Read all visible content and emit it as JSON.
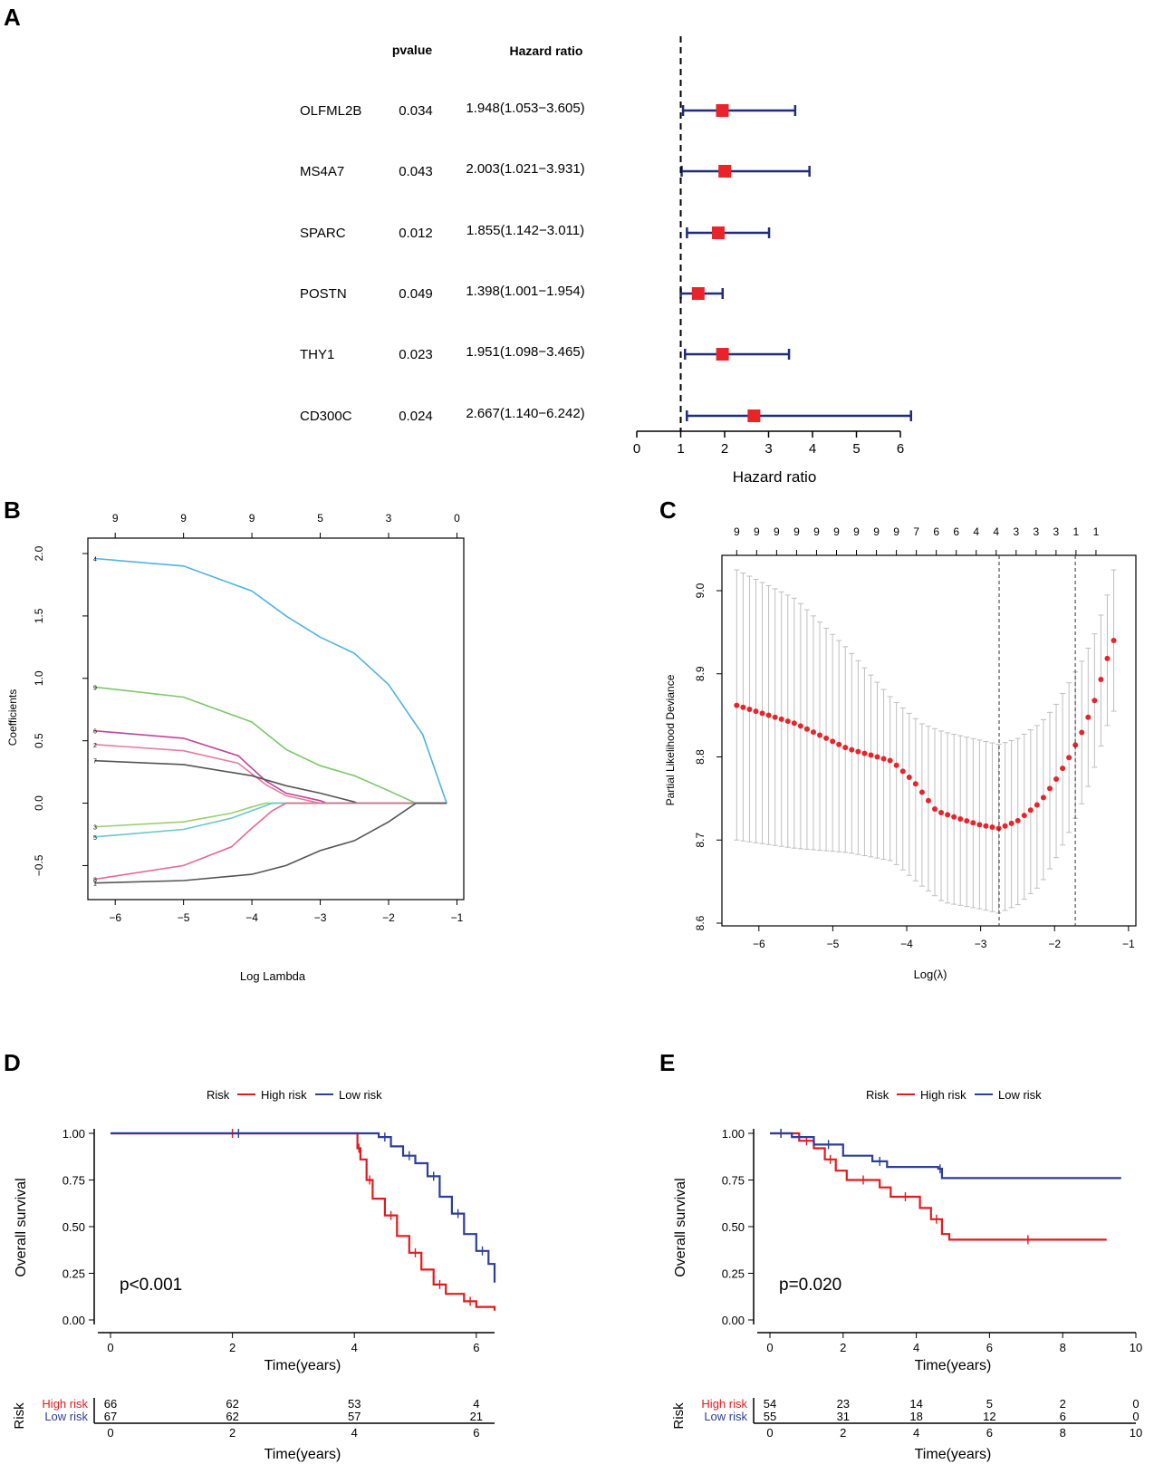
{
  "panels": {
    "A": "A",
    "B": "B",
    "C": "C",
    "D": "D",
    "E": "E"
  },
  "colors": {
    "high": "#e31a1c",
    "low": "#2c3e99",
    "forest_line": "#1f2d7a",
    "forest_box": "#e8232a",
    "cv_point": "#e8232a",
    "cv_bar": "#bfbfbf"
  },
  "chart_data": [
    {
      "id": "A",
      "type": "forest",
      "headers": {
        "pvalue": "pvalue",
        "hazard_ratio": "Hazard ratio"
      },
      "rows": [
        {
          "gene": "OLFML2B",
          "pvalue": "0.034",
          "hr_text": "1.948(1.053−3.605)",
          "hr": 1.948,
          "lo": 1.053,
          "hi": 3.605
        },
        {
          "gene": "MS4A7",
          "pvalue": "0.043",
          "hr_text": "2.003(1.021−3.931)",
          "hr": 2.003,
          "lo": 1.021,
          "hi": 3.931
        },
        {
          "gene": "SPARC",
          "pvalue": "0.012",
          "hr_text": "1.855(1.142−3.011)",
          "hr": 1.855,
          "lo": 1.142,
          "hi": 3.011
        },
        {
          "gene": "POSTN",
          "pvalue": "0.049",
          "hr_text": "1.398(1.001−1.954)",
          "hr": 1.398,
          "lo": 1.001,
          "hi": 1.954
        },
        {
          "gene": "THY1",
          "pvalue": "0.023",
          "hr_text": "1.951(1.098−3.465)",
          "hr": 1.951,
          "lo": 1.098,
          "hi": 3.465
        },
        {
          "gene": "CD300C",
          "pvalue": "0.024",
          "hr_text": "2.667(1.140−6.242)",
          "hr": 2.667,
          "lo": 1.14,
          "hi": 6.242
        }
      ],
      "xlim": [
        0,
        6
      ],
      "xticks": [
        "0",
        "1",
        "2",
        "3",
        "4",
        "5",
        "6"
      ],
      "reference": 1,
      "xlabel": "Hazard ratio"
    },
    {
      "id": "B",
      "type": "line",
      "xlabel": "Log Lambda",
      "ylabel": "Coefficients",
      "xlim": [
        -6.4,
        -0.9
      ],
      "ylim": [
        -0.7,
        2.08
      ],
      "xticks": [
        "−6",
        "−5",
        "−4",
        "−3",
        "−2",
        "−1"
      ],
      "yticks": [
        "−0.5",
        "0.0",
        "0.5",
        "1.0",
        "1.5",
        "2.0"
      ],
      "top_ticks": [
        "9",
        "9",
        "9",
        "5",
        "3",
        "0"
      ],
      "top_tick_x": [
        -6,
        -5,
        -4,
        -3,
        -2,
        -1
      ],
      "series": [
        {
          "name": "4",
          "color": "#4fb3e3",
          "x": [
            -6.3,
            -5,
            -4,
            -3.5,
            -3,
            -2.5,
            -2,
            -1.5,
            -1.15
          ],
          "y": [
            1.96,
            1.9,
            1.7,
            1.5,
            1.33,
            1.2,
            0.95,
            0.55,
            0.0
          ]
        },
        {
          "name": "9",
          "color": "#7cc76a",
          "x": [
            -6.3,
            -5,
            -4,
            -3.5,
            -3,
            -2.5,
            -2,
            -1.6,
            -1.15
          ],
          "y": [
            0.93,
            0.85,
            0.65,
            0.43,
            0.3,
            0.22,
            0.1,
            0.0,
            0.0
          ]
        },
        {
          "name": "6",
          "color": "#c0449a",
          "x": [
            -6.3,
            -5,
            -4.2,
            -3.8,
            -3.5,
            -3,
            -2.9
          ],
          "y": [
            0.58,
            0.52,
            0.38,
            0.18,
            0.08,
            0.02,
            0.0
          ]
        },
        {
          "name": "2",
          "color": "#e87aa0",
          "x": [
            -6.3,
            -5,
            -4.2,
            -3.8,
            -3.5,
            -3
          ],
          "y": [
            0.47,
            0.42,
            0.32,
            0.15,
            0.06,
            0.0
          ]
        },
        {
          "name": "7",
          "color": "#555555",
          "x": [
            -6.3,
            -5,
            -4,
            -3.5,
            -3,
            -2.5,
            -2.45
          ],
          "y": [
            0.34,
            0.31,
            0.22,
            0.14,
            0.08,
            0.01,
            0.0
          ]
        },
        {
          "name": "3",
          "color": "#9ccf6e",
          "x": [
            -6.3,
            -5,
            -4.3,
            -4,
            -3.8
          ],
          "y": [
            -0.19,
            -0.15,
            -0.08,
            -0.03,
            0.0
          ]
        },
        {
          "name": "5",
          "color": "#68c7d0",
          "x": [
            -6.3,
            -5,
            -4.3,
            -3.9,
            -3.7
          ],
          "y": [
            -0.27,
            -0.21,
            -0.12,
            -0.04,
            0.0
          ]
        },
        {
          "name": "8",
          "color": "#e46a8a",
          "x": [
            -6.3,
            -5,
            -4.3,
            -4,
            -3.7,
            -3.5
          ],
          "y": [
            -0.61,
            -0.5,
            -0.35,
            -0.2,
            -0.06,
            0.0
          ]
        },
        {
          "name": "1",
          "color": "#555555",
          "x": [
            -6.3,
            -5,
            -4,
            -3.5,
            -3,
            -2.5,
            -2,
            -1.6
          ],
          "y": [
            -0.64,
            -0.62,
            -0.57,
            -0.5,
            -0.38,
            -0.3,
            -0.15,
            0.0
          ]
        }
      ],
      "line_labels": [
        "4",
        "9",
        "6",
        "2",
        "7",
        "3",
        "5",
        "8",
        "1"
      ]
    },
    {
      "id": "C",
      "type": "scatter",
      "xlabel": "Log(λ)",
      "ylabel": "Partial Likelihood Deviance",
      "xlim": [
        -6.5,
        -0.9
      ],
      "ylim": [
        8.6,
        9.07
      ],
      "xticks": [
        "−6",
        "−5",
        "−4",
        "−3",
        "−2",
        "−1"
      ],
      "yticks": [
        "8.6",
        "8.7",
        "8.8",
        "8.9",
        "9.0"
      ],
      "top_ticks": [
        "9",
        "9",
        "9",
        "9",
        "9",
        "9",
        "9",
        "9",
        "9",
        "7",
        "6",
        "6",
        "4",
        "4",
        "3",
        "3",
        "3",
        "1",
        "1"
      ],
      "top_tick_x": [
        -6.3,
        -6.03,
        -5.76,
        -5.49,
        -5.22,
        -4.95,
        -4.68,
        -4.41,
        -4.14,
        -3.87,
        -3.6,
        -3.33,
        -3.06,
        -2.79,
        -2.52,
        -2.25,
        -1.98,
        -1.71,
        -1.44
      ],
      "vlines": [
        -2.75,
        -1.72
      ],
      "curve": [
        [
          -6.3,
          8.862
        ],
        [
          -5.5,
          8.84
        ],
        [
          -4.8,
          8.81
        ],
        [
          -4.2,
          8.795
        ],
        [
          -3.9,
          8.77
        ],
        [
          -3.6,
          8.735
        ],
        [
          -3.3,
          8.726
        ],
        [
          -3.0,
          8.718
        ],
        [
          -2.75,
          8.714
        ],
        [
          -2.5,
          8.723
        ],
        [
          -2.2,
          8.745
        ],
        [
          -2.0,
          8.77
        ],
        [
          -1.8,
          8.8
        ],
        [
          -1.6,
          8.835
        ],
        [
          -1.45,
          8.87
        ],
        [
          -1.3,
          8.915
        ],
        [
          -1.2,
          8.94
        ]
      ],
      "band_top": [
        [
          -6.3,
          9.025
        ],
        [
          -5.5,
          8.99
        ],
        [
          -4.8,
          8.93
        ],
        [
          -4.2,
          8.87
        ],
        [
          -3.8,
          8.84
        ],
        [
          -3.5,
          8.83
        ],
        [
          -3.0,
          8.82
        ],
        [
          -2.75,
          8.815
        ],
        [
          -2.5,
          8.822
        ],
        [
          -2.2,
          8.84
        ],
        [
          -2.0,
          8.86
        ],
        [
          -1.8,
          8.89
        ],
        [
          -1.6,
          8.92
        ],
        [
          -1.45,
          8.95
        ],
        [
          -1.3,
          8.99
        ],
        [
          -1.2,
          9.025
        ]
      ],
      "band_bottom": [
        [
          -6.3,
          8.7
        ],
        [
          -5.5,
          8.69
        ],
        [
          -4.8,
          8.685
        ],
        [
          -4.2,
          8.675
        ],
        [
          -3.8,
          8.645
        ],
        [
          -3.5,
          8.625
        ],
        [
          -3.0,
          8.617
        ],
        [
          -2.75,
          8.612
        ],
        [
          -2.5,
          8.622
        ],
        [
          -2.2,
          8.645
        ],
        [
          -2.0,
          8.675
        ],
        [
          -1.8,
          8.71
        ],
        [
          -1.6,
          8.75
        ],
        [
          -1.45,
          8.79
        ],
        [
          -1.3,
          8.835
        ],
        [
          -1.2,
          8.855
        ]
      ]
    },
    {
      "id": "D",
      "type": "survival",
      "legend_title": "Risk",
      "legend": [
        "High risk",
        "Low risk"
      ],
      "xlabel": "Time(years)",
      "ylabel": "Overall survival",
      "xlim": [
        0,
        6.3
      ],
      "ylim": [
        0,
        1
      ],
      "xticks": [
        "0",
        "2",
        "4",
        "6"
      ],
      "xtick_vals": [
        0,
        2,
        4,
        6
      ],
      "yticks": [
        "0.00",
        "0.25",
        "0.50",
        "0.75",
        "1.00"
      ],
      "pvalue_text": "p<0.001",
      "high_curve": [
        [
          0,
          1
        ],
        [
          4.0,
          1
        ],
        [
          4.05,
          0.92
        ],
        [
          4.1,
          0.86
        ],
        [
          4.2,
          0.75
        ],
        [
          4.3,
          0.65
        ],
        [
          4.5,
          0.56
        ],
        [
          4.7,
          0.45
        ],
        [
          4.9,
          0.36
        ],
        [
          5.1,
          0.27
        ],
        [
          5.3,
          0.19
        ],
        [
          5.5,
          0.14
        ],
        [
          5.8,
          0.1
        ],
        [
          6.0,
          0.07
        ],
        [
          6.3,
          0.05
        ]
      ],
      "low_curve": [
        [
          0,
          1
        ],
        [
          4.2,
          1
        ],
        [
          4.4,
          0.98
        ],
        [
          4.6,
          0.93
        ],
        [
          4.8,
          0.88
        ],
        [
          5.0,
          0.84
        ],
        [
          5.2,
          0.77
        ],
        [
          5.4,
          0.66
        ],
        [
          5.6,
          0.57
        ],
        [
          5.8,
          0.46
        ],
        [
          6.0,
          0.37
        ],
        [
          6.2,
          0.3
        ],
        [
          6.3,
          0.2
        ]
      ],
      "risk_table": {
        "title": "Risk",
        "rows": [
          {
            "label": "High risk",
            "counts": [
              "66",
              "62",
              "53",
              "4"
            ]
          },
          {
            "label": "Low risk",
            "counts": [
              "67",
              "62",
              "57",
              "21"
            ]
          }
        ],
        "xticks": [
          "0",
          "2",
          "4",
          "6"
        ],
        "xlabel": "Time(years)"
      }
    },
    {
      "id": "E",
      "type": "survival",
      "legend_title": "Risk",
      "legend": [
        "High risk",
        "Low risk"
      ],
      "xlabel": "Time(years)",
      "ylabel": "Overall survival",
      "xlim": [
        0,
        10
      ],
      "ylim": [
        0,
        1
      ],
      "xticks": [
        "0",
        "2",
        "4",
        "6",
        "8",
        "10"
      ],
      "xtick_vals": [
        0,
        2,
        4,
        6,
        8,
        10
      ],
      "yticks": [
        "0.00",
        "0.25",
        "0.50",
        "0.75",
        "1.00"
      ],
      "pvalue_text": "p=0.020",
      "high_curve": [
        [
          0,
          1
        ],
        [
          0.6,
          1
        ],
        [
          0.8,
          0.96
        ],
        [
          1.2,
          0.92
        ],
        [
          1.5,
          0.86
        ],
        [
          1.8,
          0.8
        ],
        [
          2.1,
          0.75
        ],
        [
          3.0,
          0.71
        ],
        [
          3.3,
          0.66
        ],
        [
          4.1,
          0.6
        ],
        [
          4.4,
          0.54
        ],
        [
          4.7,
          0.46
        ],
        [
          4.9,
          0.43
        ],
        [
          9.2,
          0.43
        ]
      ],
      "low_curve": [
        [
          0,
          1
        ],
        [
          0.6,
          0.98
        ],
        [
          1.2,
          0.94
        ],
        [
          2.0,
          0.88
        ],
        [
          2.8,
          0.85
        ],
        [
          3.2,
          0.82
        ],
        [
          4.6,
          0.81
        ],
        [
          4.7,
          0.76
        ],
        [
          9.6,
          0.76
        ]
      ],
      "risk_table": {
        "title": "Risk",
        "rows": [
          {
            "label": "High risk",
            "counts": [
              "54",
              "23",
              "14",
              "5",
              "2",
              "0"
            ]
          },
          {
            "label": "Low risk",
            "counts": [
              "55",
              "31",
              "18",
              "12",
              "6",
              "0"
            ]
          }
        ],
        "xticks": [
          "0",
          "2",
          "4",
          "6",
          "8",
          "10"
        ],
        "xlabel": "Time(years)"
      }
    }
  ]
}
